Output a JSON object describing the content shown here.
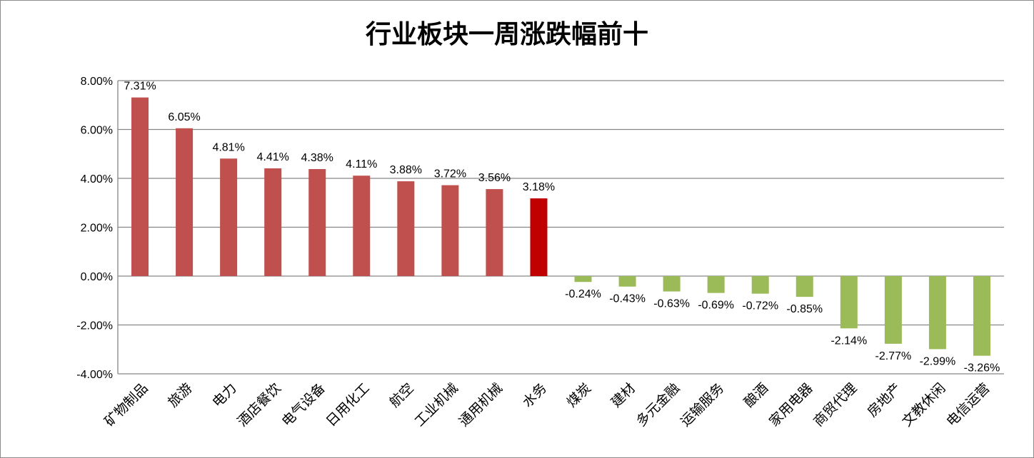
{
  "chart_data": {
    "type": "bar",
    "title": "行业板块一周涨跌幅前十",
    "categories": [
      "矿物制品",
      "旅游",
      "电力",
      "酒店餐饮",
      "电气设备",
      "日用化工",
      "航空",
      "工业机械",
      "通用机械",
      "水务",
      "煤炭",
      "建材",
      "多元金融",
      "运输服务",
      "酿酒",
      "家用电器",
      "商贸代理",
      "房地产",
      "文教休闲",
      "电信运营"
    ],
    "values": [
      7.31,
      6.05,
      4.81,
      4.41,
      4.38,
      4.11,
      3.88,
      3.72,
      3.56,
      3.18,
      -0.24,
      -0.43,
      -0.63,
      -0.69,
      -0.72,
      -0.85,
      -2.14,
      -2.77,
      -2.99,
      -3.26
    ],
    "data_labels": [
      "7.31%",
      "6.05%",
      "4.81%",
      "4.41%",
      "4.38%",
      "4.11%",
      "3.88%",
      "3.72%",
      "3.56%",
      "3.18%",
      "-0.24%",
      "-0.43%",
      "-0.63%",
      "-0.69%",
      "-0.72%",
      "-0.85%",
      "-2.14%",
      "-2.77%",
      "-2.99%",
      "-3.26%"
    ],
    "ylim": [
      -4,
      8
    ],
    "yticks": [
      8,
      6,
      4,
      2,
      0,
      -2,
      -4
    ],
    "ytick_labels": [
      "8.00%",
      "6.00%",
      "4.00%",
      "2.00%",
      "0.00%",
      "-2.00%",
      "-4.00%"
    ],
    "grid": true,
    "legend": "none",
    "colors": {
      "positive": "#c0504d",
      "highlight": "#c00000",
      "negative": "#9bbb59",
      "grid": "#868686"
    },
    "highlight_index": 9
  }
}
